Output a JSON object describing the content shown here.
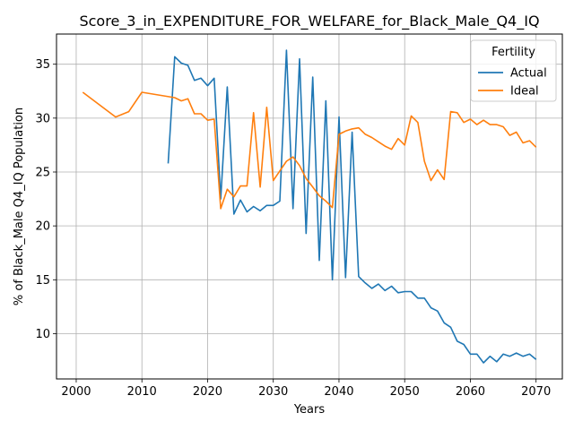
{
  "chart_data": {
    "type": "line",
    "title": "Score_3_in_EXPENDITURE_FOR_WELFARE_for_Black_Male_Q4_IQ",
    "xlabel": "Years",
    "ylabel": "% of Black_Male Q4_IQ Population",
    "xlim": [
      1997,
      2074
    ],
    "ylim": [
      5.8,
      37.8
    ],
    "xticks": [
      2000,
      2010,
      2020,
      2030,
      2040,
      2050,
      2060,
      2070
    ],
    "yticks": [
      10,
      15,
      20,
      25,
      30,
      35
    ],
    "grid": true,
    "legend": {
      "title": "Fertility",
      "placement": "top-right"
    },
    "colors": {
      "Actual": "#1f77b4",
      "Ideal": "#ff7f0e"
    },
    "series": [
      {
        "name": "Actual",
        "x": [
          2014,
          2015,
          2016,
          2017,
          2018,
          2019,
          2020,
          2021,
          2022,
          2023,
          2024,
          2025,
          2026,
          2027,
          2028,
          2029,
          2030,
          2031,
          2032,
          2033,
          2034,
          2035,
          2036,
          2037,
          2038,
          2039,
          2040,
          2041,
          2042,
          2043,
          2044,
          2045,
          2046,
          2047,
          2048,
          2049,
          2050,
          2051,
          2052,
          2053,
          2054,
          2055,
          2056,
          2057,
          2058,
          2059,
          2060,
          2061,
          2062,
          2063,
          2064,
          2065,
          2066,
          2067,
          2068,
          2069,
          2070
        ],
        "values": [
          25.8,
          35.7,
          35.1,
          34.9,
          33.5,
          33.7,
          33.0,
          33.7,
          22.5,
          32.9,
          21.1,
          22.4,
          21.3,
          21.8,
          21.4,
          21.9,
          21.9,
          22.3,
          36.3,
          21.6,
          35.5,
          19.3,
          33.8,
          16.8,
          31.6,
          15.0,
          30.1,
          15.2,
          28.7,
          15.3,
          14.7,
          14.2,
          14.6,
          14.0,
          14.4,
          13.8,
          13.9,
          13.9,
          13.3,
          13.3,
          12.4,
          12.1,
          11.0,
          10.6,
          9.3,
          9.0,
          8.1,
          8.1,
          7.3,
          7.9,
          7.4,
          8.1,
          7.9,
          8.2,
          7.9,
          8.1,
          7.6
        ]
      },
      {
        "name": "Ideal",
        "x": [
          2001,
          2006,
          2008,
          2010,
          2015,
          2016,
          2017,
          2018,
          2019,
          2020,
          2021,
          2022,
          2023,
          2024,
          2025,
          2026,
          2027,
          2028,
          2029,
          2030,
          2031,
          2032,
          2033,
          2034,
          2035,
          2036,
          2037,
          2038,
          2039,
          2040,
          2041,
          2042,
          2043,
          2044,
          2045,
          2046,
          2047,
          2048,
          2049,
          2050,
          2051,
          2052,
          2053,
          2054,
          2055,
          2056,
          2057,
          2058,
          2059,
          2060,
          2061,
          2062,
          2063,
          2064,
          2065,
          2066,
          2067,
          2068,
          2069,
          2070
        ],
        "values": [
          32.4,
          30.1,
          30.6,
          32.4,
          31.9,
          31.6,
          31.8,
          30.4,
          30.4,
          29.8,
          29.9,
          21.6,
          23.4,
          22.7,
          23.7,
          23.7,
          30.5,
          23.6,
          31.0,
          24.2,
          25.1,
          26.0,
          26.4,
          25.6,
          24.4,
          23.6,
          22.8,
          22.3,
          21.7,
          28.5,
          28.8,
          29.0,
          29.1,
          28.5,
          28.2,
          27.8,
          27.4,
          27.1,
          28.1,
          27.5,
          30.2,
          29.6,
          26.0,
          24.2,
          25.2,
          24.3,
          30.6,
          30.5,
          29.6,
          29.9,
          29.4,
          29.8,
          29.4,
          29.4,
          29.2,
          28.4,
          28.7,
          27.7,
          27.9,
          27.3
        ]
      }
    ]
  }
}
